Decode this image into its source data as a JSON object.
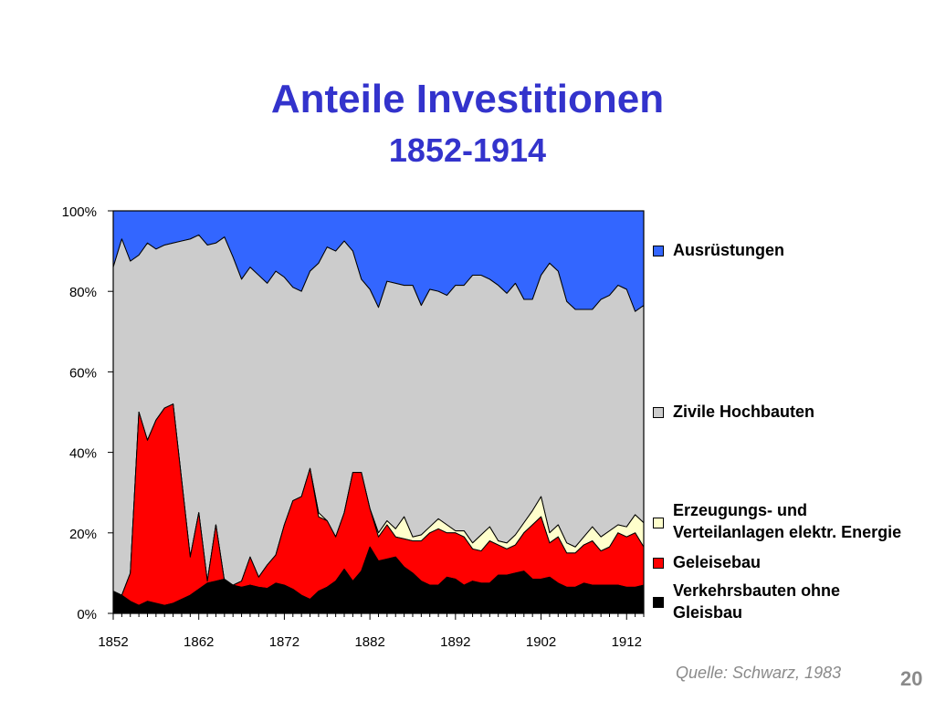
{
  "slide": {
    "title": "Anteile Investitionen",
    "subtitle": "1852-1914",
    "source": "Quelle: Schwarz, 1983",
    "page_number": "20"
  },
  "legend": {
    "items": [
      {
        "label": "Ausrüstungen",
        "color": "#3366ff"
      },
      {
        "label": "Zivile Hochbauten",
        "color": "#cccccc"
      },
      {
        "label": "Erzeugungs- und\nVerteilanlagen elektr. Energie",
        "color": "#ffffcc"
      },
      {
        "label": "Geleisebau",
        "color": "#ff0000"
      },
      {
        "label": "Verkehrsbauten ohne\nGleisbau",
        "color": "#000000"
      }
    ]
  },
  "chart_data": {
    "type": "area",
    "stacked_percent": true,
    "x": [
      1852,
      1853,
      1854,
      1855,
      1856,
      1857,
      1858,
      1859,
      1860,
      1861,
      1862,
      1863,
      1864,
      1865,
      1866,
      1867,
      1868,
      1869,
      1870,
      1871,
      1872,
      1873,
      1874,
      1875,
      1876,
      1877,
      1878,
      1879,
      1880,
      1881,
      1882,
      1883,
      1884,
      1885,
      1886,
      1887,
      1888,
      1889,
      1890,
      1891,
      1892,
      1893,
      1894,
      1895,
      1896,
      1897,
      1898,
      1899,
      1900,
      1901,
      1902,
      1903,
      1904,
      1905,
      1906,
      1907,
      1908,
      1909,
      1910,
      1911,
      1912,
      1913,
      1914
    ],
    "xticks": [
      "1852",
      "1862",
      "1872",
      "1882",
      "1892",
      "1902",
      "1912"
    ],
    "yticks": [
      "0%",
      "20%",
      "40%",
      "60%",
      "80%",
      "100%"
    ],
    "ylim": [
      0,
      100
    ],
    "grid": false,
    "legend_position": "right",
    "series": [
      {
        "name": "Verkehrsbauten ohne Gleisbau",
        "color": "#000000",
        "cum": [
          5.5,
          4.5,
          3,
          2,
          3,
          2.5,
          2,
          2.5,
          3.5,
          4.5,
          6,
          7.5,
          8,
          8.5,
          7,
          6.5,
          7,
          6.5,
          6.2,
          7.5,
          7,
          6,
          4.5,
          3.5,
          5.5,
          6.5,
          8,
          11,
          8,
          10.5,
          16.5,
          13,
          13.5,
          14,
          11.5,
          10,
          8,
          7,
          7,
          9,
          8.5,
          7,
          8,
          7.5,
          7.5,
          9.5,
          9.5,
          10,
          10.5,
          8.5,
          8.5,
          9,
          7.5,
          6.5,
          6.5,
          7.5,
          7,
          7,
          7,
          7,
          6.5,
          6.5,
          7
        ]
      },
      {
        "name": "Geleisebau",
        "color": "#ff0000",
        "cum": [
          5.5,
          4.5,
          10,
          50,
          43,
          48,
          51,
          52,
          33,
          14,
          25,
          8,
          22,
          8,
          7,
          8,
          14,
          9,
          12,
          14.5,
          22,
          28,
          29,
          36,
          24,
          23,
          19,
          25,
          35,
          35,
          26,
          19,
          22,
          19,
          18.5,
          18,
          18,
          20,
          21,
          20,
          20,
          19,
          16,
          15.5,
          18,
          17,
          16,
          17,
          20,
          22,
          24,
          17.5,
          19,
          15,
          15,
          17,
          18,
          15.5,
          16.5,
          20,
          19,
          20,
          16.5
        ]
      },
      {
        "name": "Erzeugungs- und Verteilanlagen elektr. Energie",
        "color": "#ffffcc",
        "cum": [
          5.5,
          4.5,
          10,
          50,
          43,
          48,
          51,
          52,
          33,
          14,
          25,
          8,
          22,
          8,
          7,
          8,
          14,
          9,
          12,
          14.5,
          22,
          28,
          29,
          36,
          25,
          23,
          19,
          25,
          35,
          35,
          26,
          20,
          23,
          21,
          24,
          19,
          19.5,
          21.5,
          23.5,
          22,
          20.5,
          20.5,
          17.5,
          19.5,
          21.5,
          18,
          17.5,
          19.5,
          22.5,
          25.5,
          29,
          20,
          22,
          17.5,
          16.5,
          19,
          21.5,
          19,
          20.5,
          22,
          21.5,
          24.5,
          22.5
        ]
      },
      {
        "name": "Zivile Hochbauten",
        "color": "#cccccc",
        "cum": [
          86,
          93,
          87.5,
          89,
          92,
          90.5,
          91.5,
          92,
          92.5,
          93,
          94,
          91.5,
          92,
          93.5,
          88.5,
          83,
          86,
          84,
          82,
          85,
          83.5,
          81,
          80,
          85,
          87,
          91,
          90,
          92.5,
          90,
          83,
          80.5,
          76,
          82.5,
          82,
          81.5,
          81.5,
          76.5,
          80.5,
          80,
          79,
          81.5,
          81.5,
          84,
          84,
          83,
          81.5,
          79.5,
          82,
          78,
          78,
          84,
          87,
          85,
          77.5,
          75.5,
          75.5,
          75.5,
          78,
          79,
          81.5,
          80.5,
          75,
          76.5
        ]
      },
      {
        "name": "Ausrüstungen",
        "color": "#3366ff",
        "cum": [
          100,
          100,
          100,
          100,
          100,
          100,
          100,
          100,
          100,
          100,
          100,
          100,
          100,
          100,
          100,
          100,
          100,
          100,
          100,
          100,
          100,
          100,
          100,
          100,
          100,
          100,
          100,
          100,
          100,
          100,
          100,
          100,
          100,
          100,
          100,
          100,
          100,
          100,
          100,
          100,
          100,
          100,
          100,
          100,
          100,
          100,
          100,
          100,
          100,
          100,
          100,
          100,
          100,
          100,
          100,
          100,
          100,
          100,
          100,
          100,
          100,
          100,
          100
        ]
      }
    ]
  }
}
